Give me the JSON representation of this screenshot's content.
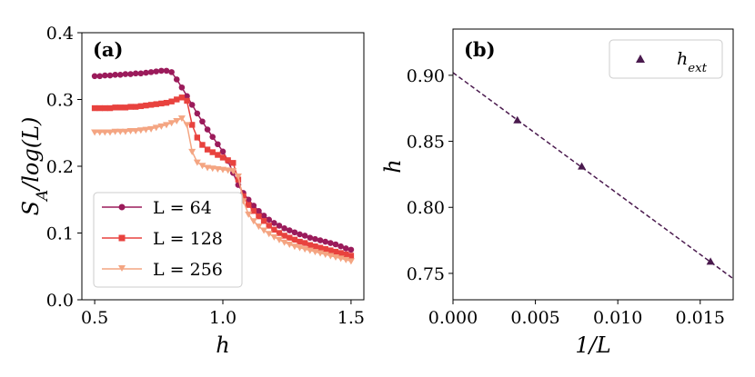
{
  "chart_data": [
    {
      "type": "line",
      "panel_label": "(a)",
      "xlabel": "h",
      "ylabel": "S_A/log(L)",
      "xlim": [
        0.45,
        1.55
      ],
      "ylim": [
        0.0,
        0.4
      ],
      "xticks": [
        0.5,
        1.0,
        1.5
      ],
      "xtick_labels": [
        "0.5",
        "1.0",
        "1.5"
      ],
      "yticks": [
        0.0,
        0.1,
        0.2,
        0.3,
        0.4
      ],
      "ytick_labels": [
        "0.0",
        "0.1",
        "0.2",
        "0.3",
        "0.4"
      ],
      "legend_position": "lower-left",
      "x": [
        0.5,
        0.52,
        0.54,
        0.56,
        0.58,
        0.6,
        0.62,
        0.64,
        0.66,
        0.68,
        0.7,
        0.72,
        0.74,
        0.76,
        0.78,
        0.8,
        0.82,
        0.84,
        0.86,
        0.88,
        0.9,
        0.92,
        0.94,
        0.96,
        0.98,
        1.0,
        1.02,
        1.04,
        1.06,
        1.08,
        1.1,
        1.12,
        1.14,
        1.16,
        1.18,
        1.2,
        1.22,
        1.24,
        1.26,
        1.28,
        1.3,
        1.32,
        1.34,
        1.36,
        1.38,
        1.4,
        1.42,
        1.44,
        1.46,
        1.48,
        1.5
      ],
      "series": [
        {
          "name": "L = 64",
          "marker": "circle",
          "color": "#9b1b5b",
          "values": [
            0.335,
            0.335,
            0.336,
            0.336,
            0.337,
            0.337,
            0.338,
            0.338,
            0.339,
            0.339,
            0.34,
            0.341,
            0.342,
            0.343,
            0.343,
            0.341,
            0.33,
            0.318,
            0.305,
            0.292,
            0.279,
            0.267,
            0.255,
            0.244,
            0.233,
            0.222,
            0.208,
            0.19,
            0.172,
            0.16,
            0.15,
            0.141,
            0.133,
            0.126,
            0.12,
            0.115,
            0.111,
            0.107,
            0.104,
            0.101,
            0.098,
            0.096,
            0.093,
            0.091,
            0.089,
            0.087,
            0.085,
            0.083,
            0.08,
            0.077,
            0.075
          ]
        },
        {
          "name": "L = 128",
          "marker": "square",
          "color": "#e8423e",
          "values": [
            0.287,
            0.287,
            0.287,
            0.287,
            0.288,
            0.288,
            0.288,
            0.289,
            0.289,
            0.29,
            0.291,
            0.292,
            0.293,
            0.294,
            0.295,
            0.297,
            0.3,
            0.303,
            0.298,
            0.262,
            0.243,
            0.232,
            0.225,
            0.221,
            0.217,
            0.213,
            0.209,
            0.205,
            0.18,
            0.155,
            0.142,
            0.133,
            0.125,
            0.118,
            0.111,
            0.105,
            0.1,
            0.096,
            0.093,
            0.09,
            0.087,
            0.085,
            0.082,
            0.08,
            0.078,
            0.076,
            0.074,
            0.072,
            0.07,
            0.068,
            0.066
          ]
        },
        {
          "name": "L = 256",
          "marker": "triangle-down",
          "color": "#f4a582",
          "values": [
            0.251,
            0.251,
            0.251,
            0.251,
            0.252,
            0.252,
            0.252,
            0.253,
            0.253,
            0.254,
            0.255,
            0.256,
            0.258,
            0.26,
            0.262,
            0.265,
            0.268,
            0.272,
            0.262,
            0.222,
            0.206,
            0.201,
            0.198,
            0.197,
            0.196,
            0.195,
            0.194,
            0.193,
            0.185,
            0.148,
            0.128,
            0.118,
            0.11,
            0.104,
            0.099,
            0.094,
            0.09,
            0.086,
            0.083,
            0.08,
            0.078,
            0.076,
            0.074,
            0.072,
            0.07,
            0.068,
            0.066,
            0.064,
            0.062,
            0.06,
            0.058
          ]
        }
      ]
    },
    {
      "type": "scatter",
      "panel_label": "(b)",
      "xlabel": "1/L",
      "ylabel": "h",
      "xlim": [
        0.0,
        0.017
      ],
      "ylim": [
        0.73,
        0.935
      ],
      "xticks": [
        0.0,
        0.005,
        0.01,
        0.015
      ],
      "xtick_labels": [
        "0.000",
        "0.005",
        "0.010",
        "0.015"
      ],
      "yticks": [
        0.75,
        0.8,
        0.85,
        0.9
      ],
      "ytick_labels": [
        "0.75",
        "0.80",
        "0.85",
        "0.90"
      ],
      "legend_position": "top-right",
      "series": [
        {
          "name": "h_ext",
          "marker": "triangle-up",
          "color": "#4a1a4e",
          "x": [
            0.00390625,
            0.0078125,
            0.015625
          ],
          "y": [
            0.866,
            0.831,
            0.759
          ]
        }
      ],
      "fit_line": {
        "style": "dashed",
        "color": "#4a1a4e",
        "x": [
          0.0,
          0.017
        ],
        "y": [
          0.902,
          0.746
        ]
      }
    }
  ]
}
